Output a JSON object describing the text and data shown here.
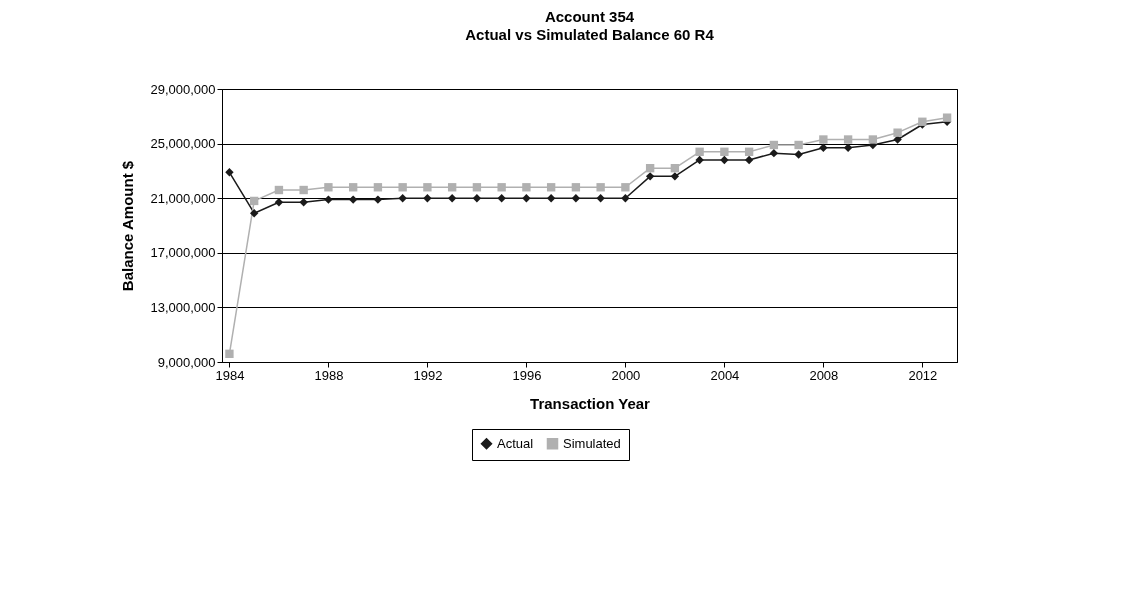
{
  "chart_data": {
    "type": "line",
    "title": "Account 354",
    "subtitle": "Actual vs Simulated Balance 60 R4",
    "xlabel": "Transaction Year",
    "ylabel": "Balance Amount $",
    "x": [
      1984,
      1985,
      1986,
      1987,
      1988,
      1989,
      1990,
      1991,
      1992,
      1993,
      1994,
      1995,
      1996,
      1997,
      1998,
      1999,
      2000,
      2001,
      2002,
      2003,
      2004,
      2005,
      2006,
      2007,
      2008,
      2009,
      2010,
      2011,
      2012,
      2013
    ],
    "series": [
      {
        "name": "Actual",
        "color": "#1a1a1a",
        "marker": "diamond",
        "values": [
          22900000,
          19900000,
          20700000,
          20700000,
          20900000,
          20900000,
          20900000,
          21000000,
          21000000,
          21000000,
          21000000,
          21000000,
          21000000,
          21000000,
          21000000,
          21000000,
          21000000,
          22600000,
          22600000,
          23800000,
          23800000,
          23800000,
          24300000,
          24200000,
          24700000,
          24700000,
          24900000,
          25300000,
          26400000,
          26600000
        ]
      },
      {
        "name": "Simulated",
        "color": "#b0b0b0",
        "marker": "square",
        "values": [
          9600000,
          20800000,
          21600000,
          21600000,
          21800000,
          21800000,
          21800000,
          21800000,
          21800000,
          21800000,
          21800000,
          21800000,
          21800000,
          21800000,
          21800000,
          21800000,
          21800000,
          23200000,
          23200000,
          24400000,
          24400000,
          24400000,
          24900000,
          24900000,
          25300000,
          25300000,
          25300000,
          25800000,
          26600000,
          26900000
        ]
      }
    ],
    "xlim": [
      1983.7,
      2013.4
    ],
    "xticks": [
      1984,
      1988,
      1992,
      1996,
      2000,
      2004,
      2008,
      2012
    ],
    "ylim": [
      9000000,
      29000000
    ],
    "yticks": [
      {
        "value": 9000000,
        "label": "9,000,000"
      },
      {
        "value": 13000000,
        "label": "13,000,000"
      },
      {
        "value": 17000000,
        "label": "17,000,000"
      },
      {
        "value": 21000000,
        "label": "21,000,000"
      },
      {
        "value": 25000000,
        "label": "25,000,000"
      },
      {
        "value": 29000000,
        "label": "29,000,000"
      }
    ],
    "grid": "y",
    "legend": "bottom"
  }
}
